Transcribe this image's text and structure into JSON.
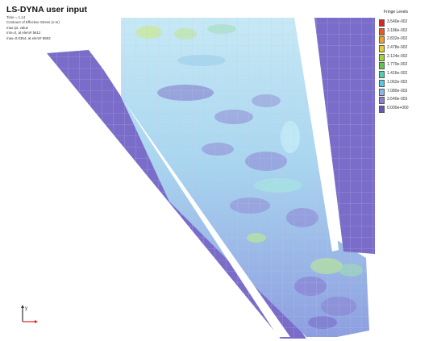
{
  "header": {
    "title": "LS-DYNA user input",
    "info_lines": [
      "Time =      1.14",
      "Contours of Effective Stress (v-m)",
      "max ipt. value",
      "min=0, at elem# 5612",
      "max=0.0354, at elem# 8853"
    ]
  },
  "legend": {
    "title": "Fringe Levels",
    "levels": [
      {
        "label": "3.540e-002",
        "color": "#e0241d"
      },
      {
        "label": "3.186e-002",
        "color": "#ec5a1c"
      },
      {
        "label": "2.832e-002",
        "color": "#f0a12a"
      },
      {
        "label": "2.478e-002",
        "color": "#e6d02c"
      },
      {
        "label": "2.124e-002",
        "color": "#a7d23a"
      },
      {
        "label": "1.770e-002",
        "color": "#5ec84a"
      },
      {
        "label": "1.416e-002",
        "color": "#54cfae"
      },
      {
        "label": "1.062e-002",
        "color": "#55c8e8"
      },
      {
        "label": "7.080e-003",
        "color": "#8fb6e8"
      },
      {
        "label": "3.540e-003",
        "color": "#8a80d0"
      },
      {
        "label": "0.000e+000",
        "color": "#6a55b5"
      }
    ]
  },
  "colors": {
    "base_purple": "#7a6cc9",
    "light_blue": "#a9d6ef",
    "grid_line": "#c7c1ee",
    "axis_red": "#d22",
    "axis_dark": "#333"
  },
  "triad": {
    "axis_label": "y"
  }
}
